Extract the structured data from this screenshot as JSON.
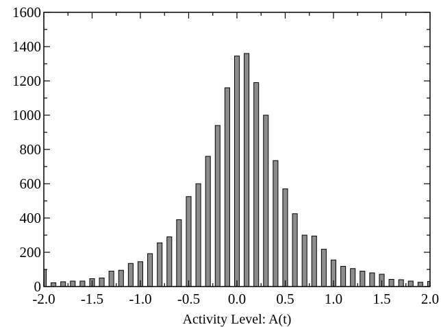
{
  "chart_data": {
    "type": "bar",
    "title": "",
    "xlabel": "Activity Level: A(t)",
    "ylabel": "",
    "xlim": [
      -2.0,
      2.0
    ],
    "ylim": [
      0,
      1600
    ],
    "grid": false,
    "x_ticks": [
      -2.0,
      -1.5,
      -1.0,
      -0.5,
      0.0,
      0.5,
      1.0,
      1.5,
      2.0
    ],
    "x_tick_labels": [
      "-2.0",
      "-1.5",
      "-1.0",
      "-0.5",
      "0.0",
      "0.5",
      "1.0",
      "1.5",
      "2.0"
    ],
    "y_ticks": [
      0,
      200,
      400,
      600,
      800,
      1000,
      1200,
      1400,
      1600
    ],
    "y_tick_labels": [
      "0",
      "200",
      "400",
      "600",
      "800",
      "1000",
      "1200",
      "1400",
      "1600"
    ],
    "bar_color": "#8c8c8c",
    "edge_color": "#000000",
    "x": [
      -2.0,
      -1.9,
      -1.8,
      -1.7,
      -1.6,
      -1.5,
      -1.4,
      -1.3,
      -1.2,
      -1.1,
      -1.0,
      -0.9,
      -0.8,
      -0.7,
      -0.6,
      -0.5,
      -0.4,
      -0.3,
      -0.2,
      -0.1,
      0.0,
      0.1,
      0.2,
      0.3,
      0.4,
      0.5,
      0.6,
      0.7,
      0.8,
      0.9,
      1.0,
      1.1,
      1.2,
      1.3,
      1.4,
      1.5,
      1.6,
      1.7,
      1.8,
      1.9,
      2.0
    ],
    "values": [
      100,
      22,
      28,
      32,
      32,
      46,
      50,
      90,
      95,
      135,
      145,
      192,
      255,
      290,
      390,
      525,
      600,
      760,
      940,
      1160,
      1345,
      1360,
      1190,
      1000,
      735,
      570,
      425,
      300,
      295,
      218,
      155,
      118,
      105,
      90,
      80,
      72,
      42,
      40,
      32,
      25,
      30
    ]
  }
}
